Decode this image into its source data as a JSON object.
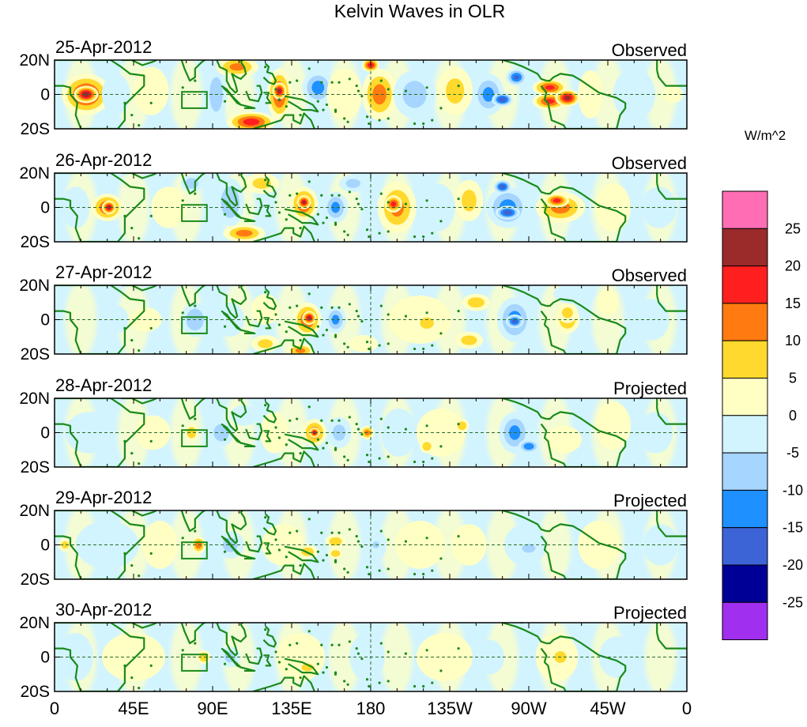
{
  "chart_data": {
    "type": "heatmap",
    "title": "Kelvin Waves in OLR",
    "units": "W/m^2",
    "x_tick_labels": [
      "0",
      "45E",
      "90E",
      "135E",
      "180",
      "135W",
      "90W",
      "45W",
      "0"
    ],
    "x_ticks_deg": [
      0,
      45,
      90,
      135,
      180,
      225,
      270,
      315,
      360
    ],
    "y_tick_labels": [
      "20N",
      "0",
      "20S"
    ],
    "y_ticks_deg": [
      20,
      0,
      -20
    ],
    "xlim": [
      0,
      360
    ],
    "ylim": [
      -20,
      20
    ],
    "colorbar": {
      "labels": [
        "25",
        "20",
        "15",
        "10",
        "5",
        "0",
        "-5",
        "-10",
        "-15",
        "-20",
        "-25"
      ],
      "levels": [
        25,
        20,
        15,
        10,
        5,
        0,
        -5,
        -10,
        -15,
        -20,
        -25
      ],
      "colors": [
        "#ff6eb4",
        "#9b2a2a",
        "#ff1f1f",
        "#ff7a10",
        "#ffd92e",
        "#ffffc4",
        "#d2f4ff",
        "#a6d5ff",
        "#1e90ff",
        "#3c64d7",
        "#000096",
        "#a02ff0"
      ]
    },
    "colors": {
      "coast": "#1a8a1a",
      "box": "#1a8a1a",
      "frame": "#000000",
      "guide": "#2b6b2b"
    },
    "panels": [
      {
        "date": "25-Apr-2012",
        "label": "Observed",
        "blobs": [
          {
            "lon": 18,
            "lat": 0,
            "rx": 14,
            "ry": 12,
            "v": 19
          },
          {
            "lon": 18,
            "lat": 0,
            "rx": 7,
            "ry": 5,
            "v": 26
          },
          {
            "lon": 55,
            "lat": 2,
            "rx": 10,
            "ry": 14,
            "v": 7
          },
          {
            "lon": 35,
            "lat": 0,
            "rx": 8,
            "ry": 12,
            "v": -7
          },
          {
            "lon": 92,
            "lat": 0,
            "rx": 6,
            "ry": 16,
            "v": -11
          },
          {
            "lon": 104,
            "lat": 16,
            "rx": 12,
            "ry": 6,
            "v": 13
          },
          {
            "lon": 112,
            "lat": -16,
            "rx": 14,
            "ry": 6,
            "v": 20
          },
          {
            "lon": 128,
            "lat": 0,
            "rx": 7,
            "ry": 15,
            "v": 18
          },
          {
            "lon": 128,
            "lat": 2,
            "rx": 4,
            "ry": 5,
            "v": 24
          },
          {
            "lon": 150,
            "lat": 4,
            "rx": 9,
            "ry": 10,
            "v": -14
          },
          {
            "lon": 165,
            "lat": 0,
            "rx": 10,
            "ry": 15,
            "v": 7
          },
          {
            "lon": 185,
            "lat": 0,
            "rx": 10,
            "ry": 15,
            "v": 14
          },
          {
            "lon": 180,
            "lat": 17,
            "rx": 5,
            "ry": 4,
            "v": 21
          },
          {
            "lon": 205,
            "lat": 0,
            "rx": 12,
            "ry": 14,
            "v": -9
          },
          {
            "lon": 228,
            "lat": 2,
            "rx": 10,
            "ry": 14,
            "v": 8
          },
          {
            "lon": 247,
            "lat": 0,
            "rx": 9,
            "ry": 12,
            "v": -13
          },
          {
            "lon": 255,
            "lat": -3,
            "rx": 6,
            "ry": 4,
            "v": -22
          },
          {
            "lon": 263,
            "lat": 10,
            "rx": 6,
            "ry": 5,
            "v": -18
          },
          {
            "lon": 282,
            "lat": 4,
            "rx": 10,
            "ry": 5,
            "v": 18
          },
          {
            "lon": 282,
            "lat": -4,
            "rx": 10,
            "ry": 5,
            "v": 18
          },
          {
            "lon": 292,
            "lat": -2,
            "rx": 7,
            "ry": 5,
            "v": 24
          },
          {
            "lon": 305,
            "lat": 0,
            "rx": 7,
            "ry": 14,
            "v": 6
          },
          {
            "lon": 330,
            "lat": 0,
            "rx": 12,
            "ry": 15,
            "v": -7
          },
          {
            "lon": 352,
            "lat": 0,
            "rx": 6,
            "ry": 5,
            "v": 7
          }
        ]
      },
      {
        "date": "26-Apr-2012",
        "label": "Observed",
        "blobs": [
          {
            "lon": 30,
            "lat": 0,
            "rx": 9,
            "ry": 8,
            "v": 17
          },
          {
            "lon": 31,
            "lat": 0,
            "rx": 4,
            "ry": 4,
            "v": 24
          },
          {
            "lon": 12,
            "lat": 0,
            "rx": 8,
            "ry": 12,
            "v": -7
          },
          {
            "lon": 65,
            "lat": 0,
            "rx": 10,
            "ry": 12,
            "v": 6
          },
          {
            "lon": 78,
            "lat": 14,
            "rx": 6,
            "ry": 5,
            "v": -11
          },
          {
            "lon": 100,
            "lat": 3,
            "rx": 8,
            "ry": 14,
            "v": -12
          },
          {
            "lon": 108,
            "lat": -15,
            "rx": 12,
            "ry": 5,
            "v": 14
          },
          {
            "lon": 118,
            "lat": 14,
            "rx": 10,
            "ry": 6,
            "v": 8
          },
          {
            "lon": 142,
            "lat": 2,
            "rx": 8,
            "ry": 10,
            "v": 17
          },
          {
            "lon": 142,
            "lat": 3,
            "rx": 4,
            "ry": 4,
            "v": 23
          },
          {
            "lon": 160,
            "lat": 0,
            "rx": 7,
            "ry": 9,
            "v": -13
          },
          {
            "lon": 170,
            "lat": 14,
            "rx": 8,
            "ry": 5,
            "v": -8
          },
          {
            "lon": 195,
            "lat": 0,
            "rx": 11,
            "ry": 15,
            "v": 13
          },
          {
            "lon": 193,
            "lat": 2,
            "rx": 5,
            "ry": 5,
            "v": 19
          },
          {
            "lon": 218,
            "lat": 0,
            "rx": 10,
            "ry": 14,
            "v": -7
          },
          {
            "lon": 236,
            "lat": 4,
            "rx": 8,
            "ry": 12,
            "v": 8
          },
          {
            "lon": 258,
            "lat": 0,
            "rx": 12,
            "ry": 12,
            "v": -14
          },
          {
            "lon": 258,
            "lat": -3,
            "rx": 7,
            "ry": 4,
            "v": -22
          },
          {
            "lon": 255,
            "lat": 12,
            "rx": 5,
            "ry": 4,
            "v": -21
          },
          {
            "lon": 288,
            "lat": 0,
            "rx": 14,
            "ry": 9,
            "v": 14
          },
          {
            "lon": 286,
            "lat": 4,
            "rx": 7,
            "ry": 4,
            "v": 19
          },
          {
            "lon": 318,
            "lat": 0,
            "rx": 10,
            "ry": 14,
            "v": 6
          },
          {
            "lon": 344,
            "lat": 0,
            "rx": 10,
            "ry": 12,
            "v": -6
          }
        ]
      },
      {
        "date": "27-Apr-2012",
        "label": "Observed",
        "blobs": [
          {
            "lon": 52,
            "lat": 0,
            "rx": 9,
            "ry": 7,
            "v": 7
          },
          {
            "lon": 36,
            "lat": 0,
            "rx": 6,
            "ry": 8,
            "v": -7
          },
          {
            "lon": 80,
            "lat": 0,
            "rx": 8,
            "ry": 10,
            "v": -11
          },
          {
            "lon": 100,
            "lat": 0,
            "rx": 8,
            "ry": 10,
            "v": -7
          },
          {
            "lon": 120,
            "lat": 6,
            "rx": 8,
            "ry": 9,
            "v": 7
          },
          {
            "lon": 120,
            "lat": -14,
            "rx": 8,
            "ry": 5,
            "v": 8
          },
          {
            "lon": 144,
            "lat": 0,
            "rx": 8,
            "ry": 10,
            "v": 17
          },
          {
            "lon": 145,
            "lat": 1,
            "rx": 4,
            "ry": 4,
            "v": 24
          },
          {
            "lon": 140,
            "lat": -18,
            "rx": 8,
            "ry": 4,
            "v": 13
          },
          {
            "lon": 160,
            "lat": 0,
            "rx": 6,
            "ry": 8,
            "v": -13
          },
          {
            "lon": 176,
            "lat": -14,
            "rx": 8,
            "ry": 5,
            "v": 7
          },
          {
            "lon": 208,
            "lat": 0,
            "rx": 18,
            "ry": 14,
            "v": 7
          },
          {
            "lon": 212,
            "lat": -2,
            "rx": 6,
            "ry": 5,
            "v": 12
          },
          {
            "lon": 240,
            "lat": 10,
            "rx": 8,
            "ry": 5,
            "v": 10
          },
          {
            "lon": 236,
            "lat": -12,
            "rx": 8,
            "ry": 5,
            "v": 9
          },
          {
            "lon": 262,
            "lat": 0,
            "rx": 10,
            "ry": 13,
            "v": -14
          },
          {
            "lon": 262,
            "lat": -1,
            "rx": 5,
            "ry": 4,
            "v": -20
          },
          {
            "lon": 292,
            "lat": 0,
            "rx": 7,
            "ry": 8,
            "v": 12
          },
          {
            "lon": 292,
            "lat": 4,
            "rx": 6,
            "ry": 6,
            "v": 8
          },
          {
            "lon": 296,
            "lat": 15,
            "rx": 12,
            "ry": 6,
            "v": -7
          },
          {
            "lon": 315,
            "lat": 10,
            "rx": 6,
            "ry": 8,
            "v": 7
          },
          {
            "lon": 340,
            "lat": 0,
            "rx": 10,
            "ry": 12,
            "v": -5
          }
        ]
      },
      {
        "date": "28-Apr-2012",
        "label": "Projected",
        "blobs": [
          {
            "lon": 20,
            "lat": 0,
            "rx": 14,
            "ry": 12,
            "v": -6
          },
          {
            "lon": 56,
            "lat": 0,
            "rx": 10,
            "ry": 10,
            "v": 5
          },
          {
            "lon": 78,
            "lat": 0,
            "rx": 4,
            "ry": 5,
            "v": 12
          },
          {
            "lon": 95,
            "lat": 0,
            "rx": 7,
            "ry": 8,
            "v": -11
          },
          {
            "lon": 108,
            "lat": 10,
            "rx": 8,
            "ry": 6,
            "v": -7
          },
          {
            "lon": 125,
            "lat": 0,
            "rx": 8,
            "ry": 12,
            "v": 6
          },
          {
            "lon": 148,
            "lat": 0,
            "rx": 7,
            "ry": 8,
            "v": 15
          },
          {
            "lon": 148,
            "lat": 0,
            "rx": 3,
            "ry": 3,
            "v": 23
          },
          {
            "lon": 162,
            "lat": 0,
            "rx": 7,
            "ry": 9,
            "v": -8
          },
          {
            "lon": 178,
            "lat": 0,
            "rx": 4,
            "ry": 4,
            "v": 14
          },
          {
            "lon": 196,
            "lat": 0,
            "rx": 10,
            "ry": 14,
            "v": -7
          },
          {
            "lon": 220,
            "lat": 0,
            "rx": 14,
            "ry": 14,
            "v": 7
          },
          {
            "lon": 212,
            "lat": -8,
            "rx": 4,
            "ry": 4,
            "v": 11
          },
          {
            "lon": 232,
            "lat": 4,
            "rx": 4,
            "ry": 4,
            "v": 11
          },
          {
            "lon": 262,
            "lat": 0,
            "rx": 9,
            "ry": 12,
            "v": -13
          },
          {
            "lon": 270,
            "lat": -8,
            "rx": 6,
            "ry": 4,
            "v": -17
          },
          {
            "lon": 290,
            "lat": -4,
            "rx": 10,
            "ry": 8,
            "v": 7
          },
          {
            "lon": 318,
            "lat": 4,
            "rx": 10,
            "ry": 14,
            "v": 6
          },
          {
            "lon": 342,
            "lat": 0,
            "rx": 10,
            "ry": 12,
            "v": -5
          }
        ]
      },
      {
        "date": "29-Apr-2012",
        "label": "Projected",
        "blobs": [
          {
            "lon": 6,
            "lat": 0,
            "rx": 4,
            "ry": 4,
            "v": 8
          },
          {
            "lon": 30,
            "lat": 0,
            "rx": 18,
            "ry": 14,
            "v": -6
          },
          {
            "lon": 60,
            "lat": 0,
            "rx": 10,
            "ry": 14,
            "v": 4
          },
          {
            "lon": 82,
            "lat": 0,
            "rx": 4,
            "ry": 5,
            "v": 16
          },
          {
            "lon": 100,
            "lat": 0,
            "rx": 8,
            "ry": 8,
            "v": -8
          },
          {
            "lon": 130,
            "lat": 0,
            "rx": 12,
            "ry": 12,
            "v": 6
          },
          {
            "lon": 144,
            "lat": -4,
            "rx": 6,
            "ry": 4,
            "v": 10
          },
          {
            "lon": 160,
            "lat": 2,
            "rx": 6,
            "ry": 4,
            "v": 10
          },
          {
            "lon": 160,
            "lat": -5,
            "rx": 4,
            "ry": 3,
            "v": 12
          },
          {
            "lon": 183,
            "lat": 0,
            "rx": 6,
            "ry": 9,
            "v": -7
          },
          {
            "lon": 183,
            "lat": 0,
            "rx": 3,
            "ry": 3,
            "v": -12
          },
          {
            "lon": 208,
            "lat": 0,
            "rx": 14,
            "ry": 14,
            "v": 5
          },
          {
            "lon": 236,
            "lat": 0,
            "rx": 10,
            "ry": 12,
            "v": 5
          },
          {
            "lon": 268,
            "lat": 0,
            "rx": 12,
            "ry": 12,
            "v": -7
          },
          {
            "lon": 270,
            "lat": -2,
            "rx": 6,
            "ry": 4,
            "v": -11
          },
          {
            "lon": 310,
            "lat": 0,
            "rx": 12,
            "ry": 14,
            "v": 3
          },
          {
            "lon": 345,
            "lat": 0,
            "rx": 10,
            "ry": 12,
            "v": -5
          }
        ]
      },
      {
        "date": "30-Apr-2012",
        "label": "Projected",
        "blobs": [
          {
            "lon": 12,
            "lat": 0,
            "rx": 10,
            "ry": 14,
            "v": -5
          },
          {
            "lon": 45,
            "lat": 0,
            "rx": 18,
            "ry": 14,
            "v": 3
          },
          {
            "lon": 85,
            "lat": 0,
            "rx": 4,
            "ry": 4,
            "v": 12
          },
          {
            "lon": 100,
            "lat": 0,
            "rx": 6,
            "ry": 6,
            "v": -8
          },
          {
            "lon": 140,
            "lat": 0,
            "rx": 14,
            "ry": 14,
            "v": 5
          },
          {
            "lon": 144,
            "lat": -6,
            "rx": 6,
            "ry": 4,
            "v": 9
          },
          {
            "lon": 178,
            "lat": 0,
            "rx": 10,
            "ry": 14,
            "v": -5
          },
          {
            "lon": 222,
            "lat": 0,
            "rx": 16,
            "ry": 14,
            "v": 4
          },
          {
            "lon": 248,
            "lat": 0,
            "rx": 8,
            "ry": 10,
            "v": -4
          },
          {
            "lon": 286,
            "lat": 0,
            "rx": 12,
            "ry": 14,
            "v": 6
          },
          {
            "lon": 288,
            "lat": 0,
            "rx": 6,
            "ry": 6,
            "v": 9
          },
          {
            "lon": 320,
            "lat": 0,
            "rx": 10,
            "ry": 12,
            "v": -5
          }
        ]
      }
    ]
  }
}
